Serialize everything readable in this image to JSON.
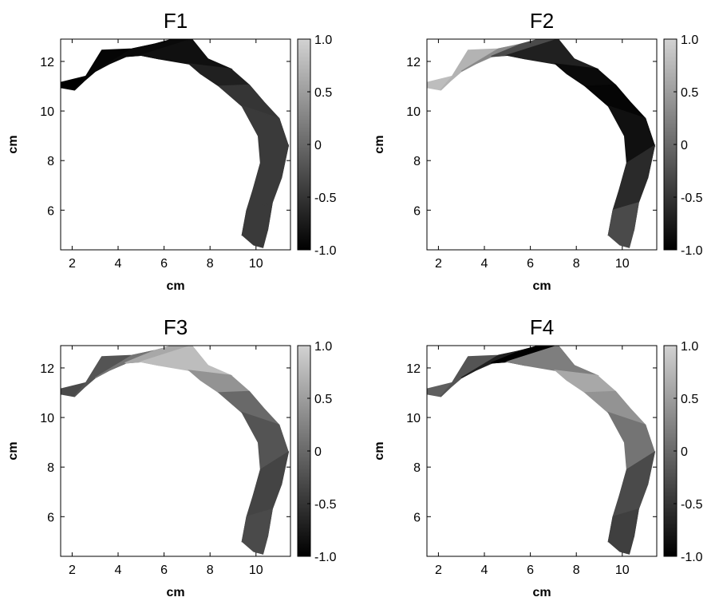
{
  "chart_data": [
    {
      "type": "heatmap",
      "title": "F1",
      "xlabel": "cm",
      "ylabel": "cm",
      "xlim": [
        1.5,
        11.5
      ],
      "ylim": [
        4.4,
        12.9
      ],
      "xticks": [
        "2",
        "4",
        "6",
        "8",
        "10"
      ],
      "yticks": [
        "6",
        "8",
        "10",
        "12"
      ],
      "colorbar": {
        "min": -1.0,
        "max": 1.0,
        "ticks": [
          "1.0",
          "0.5",
          "0",
          "-0.5",
          "-1.0"
        ]
      },
      "grid": false,
      "values": [
        -1.0,
        -0.95,
        -0.9,
        -0.9,
        -0.85,
        -0.7,
        -0.5,
        -0.45,
        -0.45,
        -0.45
      ]
    },
    {
      "type": "heatmap",
      "title": "F2",
      "xlabel": "cm",
      "ylabel": "cm",
      "xlim": [
        1.5,
        11.5
      ],
      "ylim": [
        4.4,
        12.9
      ],
      "xticks": [
        "2",
        "4",
        "6",
        "8",
        "10"
      ],
      "yticks": [
        "6",
        "8",
        "10",
        "12"
      ],
      "colorbar": {
        "min": -1.0,
        "max": 1.0,
        "ticks": [
          "1.0",
          "0.5",
          "0",
          "-0.5",
          "-1.0"
        ]
      },
      "grid": false,
      "values": [
        0.8,
        0.7,
        0.3,
        -0.3,
        -0.7,
        -0.9,
        -0.95,
        -0.85,
        -0.6,
        -0.3
      ]
    },
    {
      "type": "heatmap",
      "title": "F3",
      "xlabel": "cm",
      "ylabel": "cm",
      "xlim": [
        1.5,
        11.5
      ],
      "ylim": [
        4.4,
        12.9
      ],
      "xticks": [
        "2",
        "4",
        "6",
        "8",
        "10"
      ],
      "yticks": [
        "6",
        "8",
        "10",
        "12"
      ],
      "colorbar": {
        "min": -1.0,
        "max": 1.0,
        "ticks": [
          "1.0",
          "0.5",
          "0",
          "-0.5",
          "-1.0"
        ]
      },
      "grid": false,
      "values": [
        -0.3,
        -0.2,
        0.1,
        0.6,
        0.8,
        0.4,
        0.0,
        -0.2,
        -0.35,
        -0.3
      ]
    },
    {
      "type": "heatmap",
      "title": "F4",
      "xlabel": "cm",
      "ylabel": "cm",
      "xlim": [
        1.5,
        11.5
      ],
      "ylim": [
        4.4,
        12.9
      ],
      "xticks": [
        "2",
        "4",
        "6",
        "8",
        "10"
      ],
      "yticks": [
        "6",
        "8",
        "10",
        "12"
      ],
      "colorbar": {
        "min": -1.0,
        "max": 1.0,
        "ticks": [
          "1.0",
          "0.5",
          "0",
          "-0.5",
          "-1.0"
        ]
      },
      "grid": false,
      "values": [
        -0.1,
        -0.2,
        -0.7,
        -1.0,
        0.2,
        0.6,
        0.4,
        0.1,
        -0.3,
        -0.4
      ]
    }
  ]
}
